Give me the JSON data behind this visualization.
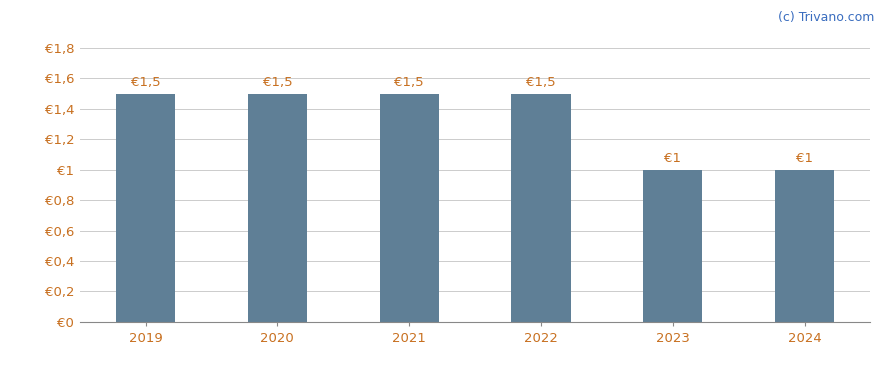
{
  "years": [
    2019,
    2020,
    2021,
    2022,
    2023,
    2024
  ],
  "values": [
    1.5,
    1.5,
    1.5,
    1.5,
    1.0,
    1.0
  ],
  "bar_color": "#5f7f96",
  "bar_labels": [
    "€1,5",
    "€1,5",
    "€1,5",
    "€1,5",
    "€1",
    "€1"
  ],
  "ytick_labels": [
    "€0",
    "€0,2",
    "€0,4",
    "€0,6",
    "€0,8",
    "€1",
    "€1,2",
    "€1,4",
    "€1,6",
    "€1,8"
  ],
  "ytick_values": [
    0,
    0.2,
    0.4,
    0.6,
    0.8,
    1.0,
    1.2,
    1.4,
    1.6,
    1.8
  ],
  "ylim": [
    0,
    1.92
  ],
  "background_color": "#ffffff",
  "grid_color": "#cccccc",
  "watermark": "(c) Trivano.com",
  "watermark_color": "#3a6dbf",
  "bar_width": 0.45,
  "label_fontsize": 9.5,
  "tick_fontsize": 9.5,
  "watermark_fontsize": 9,
  "tick_color": "#c87020",
  "label_color": "#c87020"
}
